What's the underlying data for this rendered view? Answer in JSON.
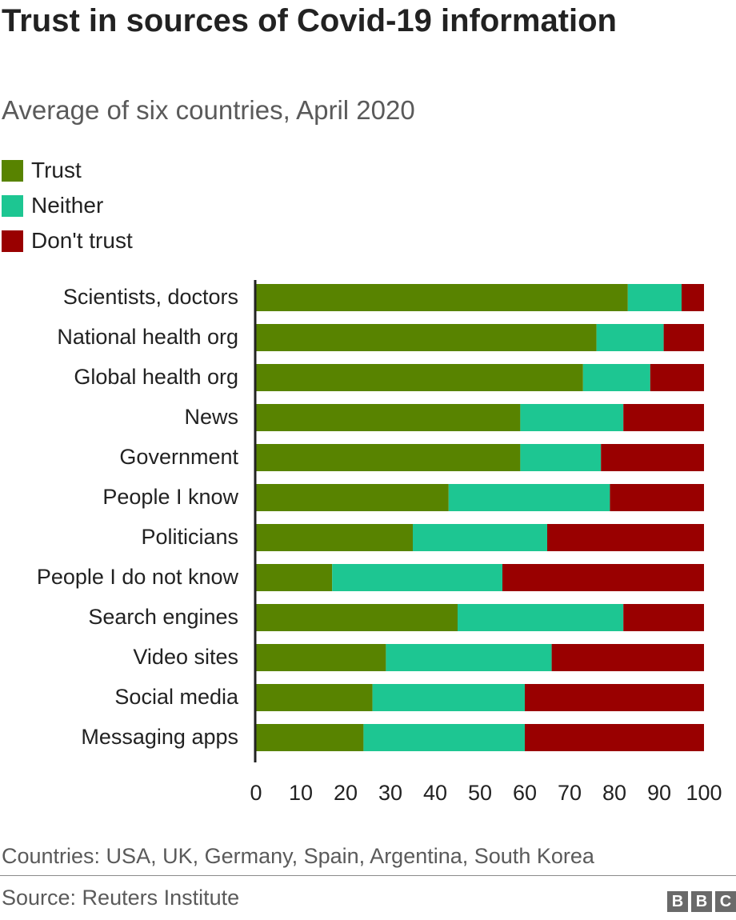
{
  "header": {
    "title": "Trust in sources of Covid-19 information",
    "subtitle": "Average of six countries, April 2020"
  },
  "legend": [
    {
      "label": "Trust",
      "color": "#588300"
    },
    {
      "label": "Neither",
      "color": "#1dc692"
    },
    {
      "label": "Don't trust",
      "color": "#990000"
    }
  ],
  "chart_data": {
    "type": "bar",
    "orientation": "horizontal",
    "stacked": true,
    "categories": [
      "Scientists, doctors",
      "National health org",
      "Global health org",
      "News",
      "Government",
      "People I know",
      "Politicians",
      "People I do not know",
      "Search engines",
      "Video sites",
      "Social media",
      "Messaging apps"
    ],
    "series": [
      {
        "name": "Trust",
        "color": "#588300",
        "values": [
          83,
          76,
          73,
          59,
          59,
          43,
          35,
          17,
          45,
          29,
          26,
          24
        ]
      },
      {
        "name": "Neither",
        "color": "#1dc692",
        "values": [
          12,
          15,
          15,
          23,
          18,
          36,
          30,
          38,
          37,
          37,
          34,
          36
        ]
      },
      {
        "name": "Don't trust",
        "color": "#990000",
        "values": [
          5,
          9,
          12,
          18,
          23,
          21,
          35,
          45,
          18,
          34,
          40,
          40
        ]
      }
    ],
    "xlim": [
      0,
      100
    ],
    "xticks": [
      "0",
      "10",
      "20",
      "30",
      "40",
      "50",
      "60",
      "70",
      "80",
      "90",
      "100"
    ],
    "title": "Trust in sources of Covid-19 information",
    "xlabel": "",
    "ylabel": "",
    "grid": false,
    "legend_position": "top-left"
  },
  "footer": {
    "note": "Countries: USA, UK, Germany, Spain, Argentina, South Korea",
    "source": "Source: Reuters Institute",
    "logo": [
      "B",
      "B",
      "C"
    ]
  }
}
